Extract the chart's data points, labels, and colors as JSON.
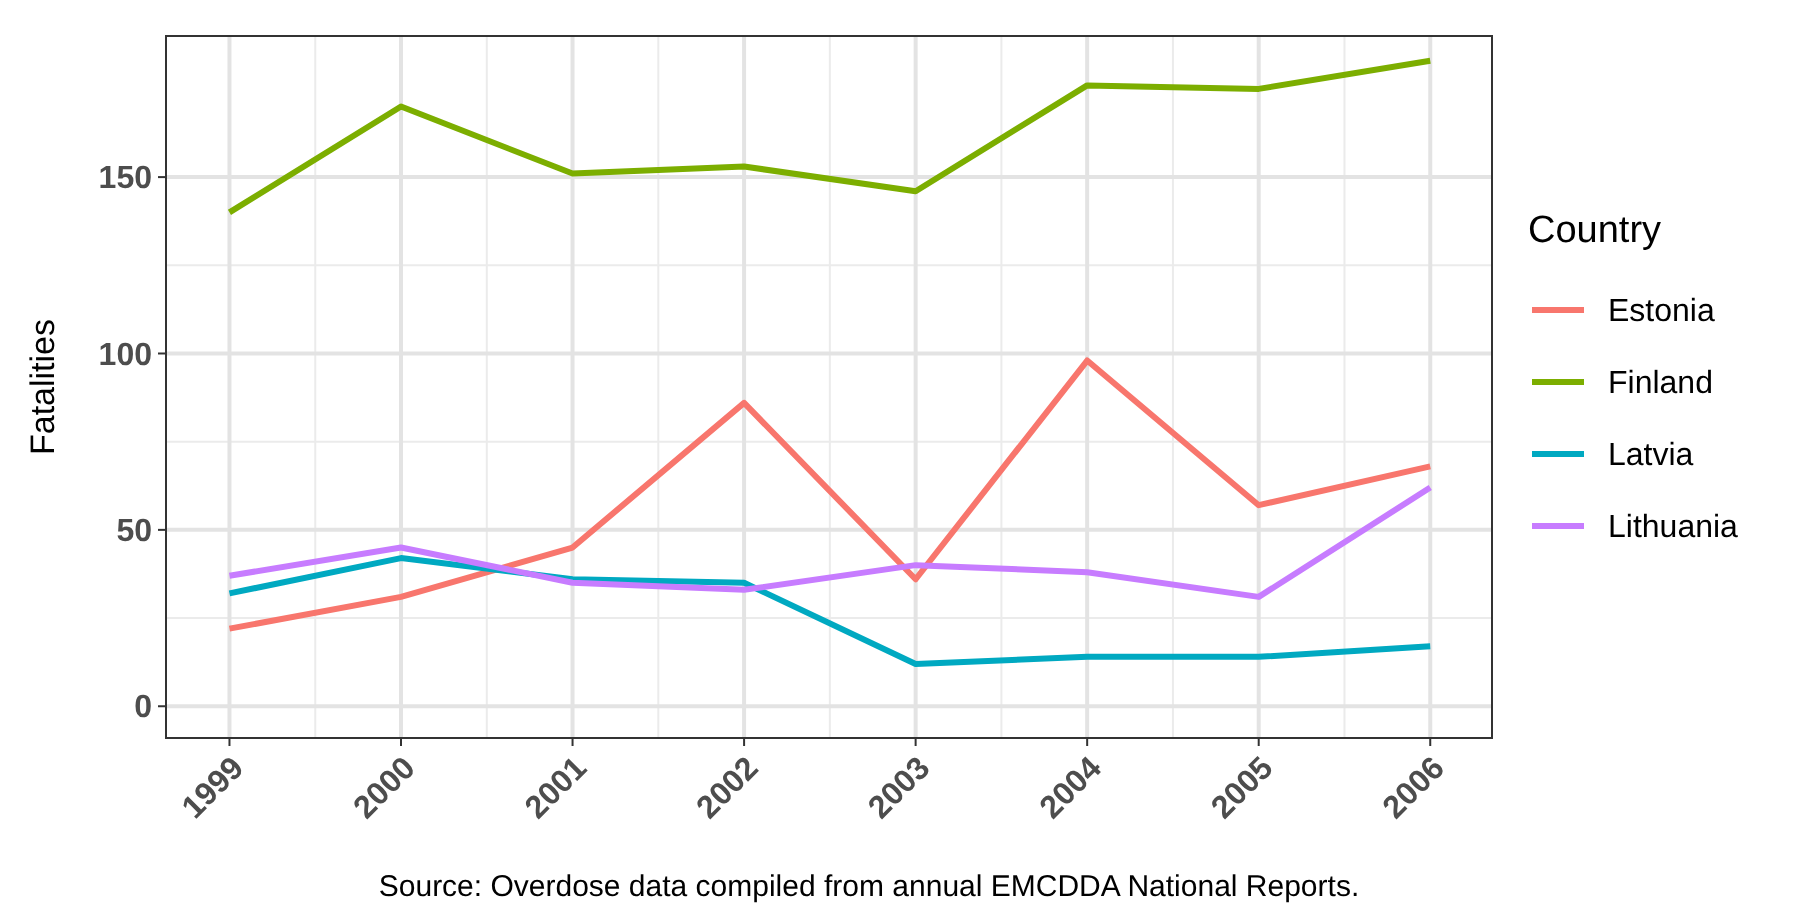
{
  "chart_data": {
    "type": "line",
    "xlabel": null,
    "ylabel": "Fatalities",
    "legend_title": "Country",
    "annotations": [
      "Source: Overdose data compiled from annual EMCDDA National Reports."
    ],
    "x": [
      1999,
      2000,
      2001,
      2002,
      2003,
      2004,
      2005,
      2006
    ],
    "series": [
      {
        "name": "Estonia",
        "color": "#f8766d",
        "values": [
          22,
          31,
          45,
          86,
          36,
          98,
          57,
          68
        ]
      },
      {
        "name": "Finland",
        "color": "#7cae00",
        "values": [
          140,
          170,
          151,
          153,
          146,
          176,
          175,
          183
        ]
      },
      {
        "name": "Latvia",
        "color": "#00a9c1",
        "values": [
          32,
          42,
          36,
          35,
          12,
          14,
          14,
          17
        ]
      },
      {
        "name": "Lithuania",
        "color": "#c77cff",
        "values": [
          37,
          45,
          35,
          33,
          40,
          38,
          31,
          62
        ]
      }
    ],
    "xlim": [
      1998.63,
      2006.36
    ],
    "ylim": [
      -9,
      190
    ],
    "xticks": [
      1999,
      2000,
      2001,
      2002,
      2003,
      2004,
      2005,
      2006
    ],
    "yticks": [
      0,
      50,
      100,
      150
    ],
    "grid": true,
    "legend": "right",
    "marker": "none",
    "line_style": "solid"
  }
}
